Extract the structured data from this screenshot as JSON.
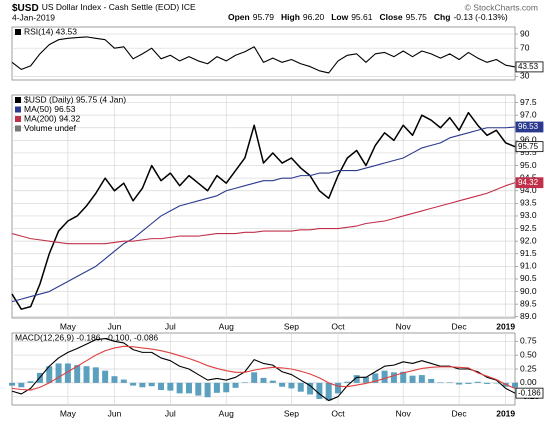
{
  "header": {
    "symbol": "$USD",
    "name": "US Dollar Index - Cash Settle (EOD) ICE",
    "source": "© StockCharts.com",
    "date": "4-Jan-2019",
    "quote": [
      {
        "label": "Open",
        "value": "95.79"
      },
      {
        "label": "High",
        "value": "96.20"
      },
      {
        "label": "Low",
        "value": "95.61"
      },
      {
        "label": "Close",
        "value": "95.75"
      },
      {
        "label": "Chg",
        "value": "-0.13 (-0.13%)"
      }
    ]
  },
  "chart_data": [
    {
      "type": "line",
      "grid": true,
      "ylim": [
        25,
        100
      ],
      "yticks": [
        30,
        70,
        90
      ],
      "series": [
        {
          "name": "RSI(14) 43.53",
          "color": "#000000",
          "tag": true,
          "values": [
            50,
            40,
            45,
            62,
            75,
            82,
            84,
            85,
            86,
            84,
            82,
            70,
            72,
            55,
            62,
            70,
            55,
            60,
            52,
            58,
            52,
            48,
            58,
            52,
            60,
            65,
            72,
            50,
            56,
            50,
            54,
            48,
            44,
            38,
            35,
            52,
            60,
            62,
            50,
            62,
            64,
            58,
            66,
            58,
            66,
            62,
            56,
            62,
            54,
            64,
            56,
            50,
            54,
            46,
            43.53
          ]
        }
      ]
    },
    {
      "type": "line",
      "grid": true,
      "categories": [
        null,
        null,
        null,
        null,
        null,
        null,
        "May",
        null,
        null,
        null,
        null,
        "Jun",
        null,
        null,
        null,
        null,
        null,
        "Jul",
        null,
        null,
        null,
        null,
        null,
        "Aug",
        null,
        null,
        null,
        null,
        null,
        null,
        "Sep",
        null,
        null,
        null,
        null,
        "Oct",
        null,
        null,
        null,
        null,
        null,
        null,
        "Nov",
        null,
        null,
        null,
        null,
        null,
        "Dec",
        null,
        null,
        null,
        null,
        "2019",
        null
      ],
      "ylim": [
        88.95,
        97.8
      ],
      "yticks": [
        {
          "value": 89,
          "label": "89.0"
        },
        89.5,
        {
          "value": 90,
          "label": "90.0"
        },
        90.5,
        {
          "value": 91,
          "label": "91.0"
        },
        91.5,
        {
          "value": 92,
          "label": "92.0"
        },
        92.5,
        {
          "value": 93,
          "label": "93.0"
        },
        93.5,
        {
          "value": 94,
          "label": "94.0"
        },
        94.5,
        {
          "value": 95,
          "label": "95.0"
        },
        95.5,
        {
          "value": 96,
          "label": "96.0"
        },
        96.5,
        {
          "value": 97,
          "label": "97.0"
        },
        97.5
      ],
      "extra_legend": "Volume undef",
      "series": [
        {
          "name": "$USD (Daily) 95.75 (4 Jan)",
          "color": "#000000",
          "tag": true,
          "values": [
            89.9,
            89.3,
            89.4,
            90.3,
            91.5,
            92.4,
            92.8,
            93.0,
            93.4,
            93.9,
            94.5,
            94.0,
            94.3,
            93.6,
            94.1,
            95.0,
            94.4,
            94.7,
            94.2,
            94.6,
            94.3,
            94.0,
            94.6,
            94.3,
            94.8,
            95.3,
            96.6,
            95.1,
            95.5,
            95.1,
            95.3,
            94.9,
            94.6,
            94.0,
            93.7,
            94.6,
            95.3,
            95.6,
            95.0,
            95.8,
            96.3,
            96.0,
            96.6,
            96.2,
            97.0,
            96.8,
            96.5,
            96.9,
            96.4,
            97.1,
            96.6,
            96.2,
            96.4,
            95.9,
            95.75
          ]
        },
        {
          "name": "MA(50) 96.53",
          "color": "#2b3a8f",
          "tag": true,
          "values": [
            89.6,
            89.7,
            89.8,
            89.9,
            90.0,
            90.2,
            90.4,
            90.6,
            90.8,
            91.0,
            91.3,
            91.6,
            91.9,
            92.1,
            92.4,
            92.7,
            93.0,
            93.2,
            93.4,
            93.5,
            93.6,
            93.7,
            93.8,
            94.0,
            94.1,
            94.2,
            94.3,
            94.4,
            94.4,
            94.5,
            94.5,
            94.6,
            94.6,
            94.7,
            94.7,
            94.8,
            94.8,
            94.8,
            94.9,
            95.0,
            95.1,
            95.2,
            95.3,
            95.5,
            95.7,
            95.8,
            95.9,
            96.1,
            96.2,
            96.3,
            96.4,
            96.5,
            96.5,
            96.5,
            96.53
          ]
        },
        {
          "name": "MA(200) 94.32",
          "color": "#c0304a",
          "tag": true,
          "values": [
            92.3,
            92.2,
            92.1,
            92.05,
            92.0,
            91.95,
            91.9,
            91.9,
            91.9,
            91.9,
            91.9,
            91.95,
            92.0,
            92.0,
            92.05,
            92.1,
            92.1,
            92.15,
            92.2,
            92.2,
            92.2,
            92.25,
            92.3,
            92.3,
            92.3,
            92.35,
            92.35,
            92.4,
            92.4,
            92.4,
            92.4,
            92.45,
            92.45,
            92.5,
            92.5,
            92.5,
            92.55,
            92.6,
            92.7,
            92.75,
            92.8,
            92.9,
            93.0,
            93.1,
            93.2,
            93.3,
            93.4,
            93.5,
            93.6,
            93.7,
            93.8,
            93.9,
            94.05,
            94.2,
            94.32
          ]
        }
      ]
    },
    {
      "type": "line",
      "grid": true,
      "label": "MACD(12,26,9) -0.186, -0.100, -0.086",
      "categories": [
        null,
        null,
        null,
        null,
        null,
        null,
        "May",
        null,
        null,
        null,
        null,
        "Jun",
        null,
        null,
        null,
        null,
        null,
        "Jul",
        null,
        null,
        null,
        null,
        null,
        "Aug",
        null,
        null,
        null,
        null,
        null,
        null,
        "Sep",
        null,
        null,
        null,
        null,
        "Oct",
        null,
        null,
        null,
        null,
        null,
        null,
        "Nov",
        null,
        null,
        null,
        null,
        null,
        "Dec",
        null,
        null,
        null,
        null,
        "2019",
        null
      ],
      "ylim": [
        -0.4,
        0.9
      ],
      "yticks": [
        {
          "value": -0.25,
          "label": "-0.25"
        },
        {
          "value": 0,
          "label": "0.00"
        },
        0.25,
        {
          "value": 0.5,
          "label": "0.50"
        },
        0.75
      ],
      "series": [
        {
          "type": "bar",
          "color": "#3f8fb5",
          "values": [
            -0.05,
            -0.08,
            0.03,
            0.18,
            0.3,
            0.35,
            0.35,
            0.32,
            0.3,
            0.28,
            0.22,
            0.12,
            0.06,
            -0.05,
            -0.08,
            -0.06,
            -0.13,
            -0.14,
            -0.19,
            -0.19,
            -0.23,
            -0.26,
            -0.18,
            -0.17,
            -0.09,
            0.01,
            0.19,
            0.09,
            0.04,
            -0.07,
            -0.1,
            -0.16,
            -0.21,
            -0.29,
            -0.32,
            -0.19,
            0.02,
            0.14,
            0.11,
            0.17,
            0.22,
            0.19,
            0.2,
            0.13,
            0.14,
            0.07,
            0.01,
            0.01,
            -0.03,
            -0.02,
            0.02,
            -0.02,
            -0.01,
            -0.07,
            -0.086
          ]
        },
        {
          "color": "#000000",
          "tag": true,
          "values": [
            -0.15,
            -0.2,
            -0.1,
            0.1,
            0.3,
            0.45,
            0.55,
            0.62,
            0.7,
            0.78,
            0.8,
            0.75,
            0.72,
            0.6,
            0.55,
            0.55,
            0.45,
            0.4,
            0.3,
            0.25,
            0.15,
            0.05,
            0.08,
            0.05,
            0.1,
            0.2,
            0.42,
            0.35,
            0.32,
            0.2,
            0.15,
            0.05,
            -0.05,
            -0.2,
            -0.32,
            -0.25,
            -0.05,
            0.1,
            0.1,
            0.2,
            0.3,
            0.32,
            0.38,
            0.35,
            0.4,
            0.35,
            0.3,
            0.3,
            0.25,
            0.25,
            0.2,
            0.1,
            0.05,
            -0.1,
            -0.186
          ]
        },
        {
          "color": "#e04040",
          "values": [
            -0.1,
            -0.12,
            -0.13,
            -0.08,
            0.0,
            0.1,
            0.2,
            0.3,
            0.4,
            0.5,
            0.58,
            0.63,
            0.66,
            0.65,
            0.63,
            0.61,
            0.58,
            0.54,
            0.49,
            0.44,
            0.38,
            0.31,
            0.26,
            0.22,
            0.19,
            0.19,
            0.23,
            0.26,
            0.28,
            0.27,
            0.25,
            0.21,
            0.16,
            0.09,
            0.0,
            -0.06,
            -0.07,
            -0.04,
            -0.01,
            0.03,
            0.08,
            0.13,
            0.18,
            0.22,
            0.26,
            0.28,
            0.29,
            0.29,
            0.28,
            0.27,
            0.18,
            0.12,
            0.06,
            -0.03,
            -0.1
          ]
        }
      ]
    }
  ]
}
